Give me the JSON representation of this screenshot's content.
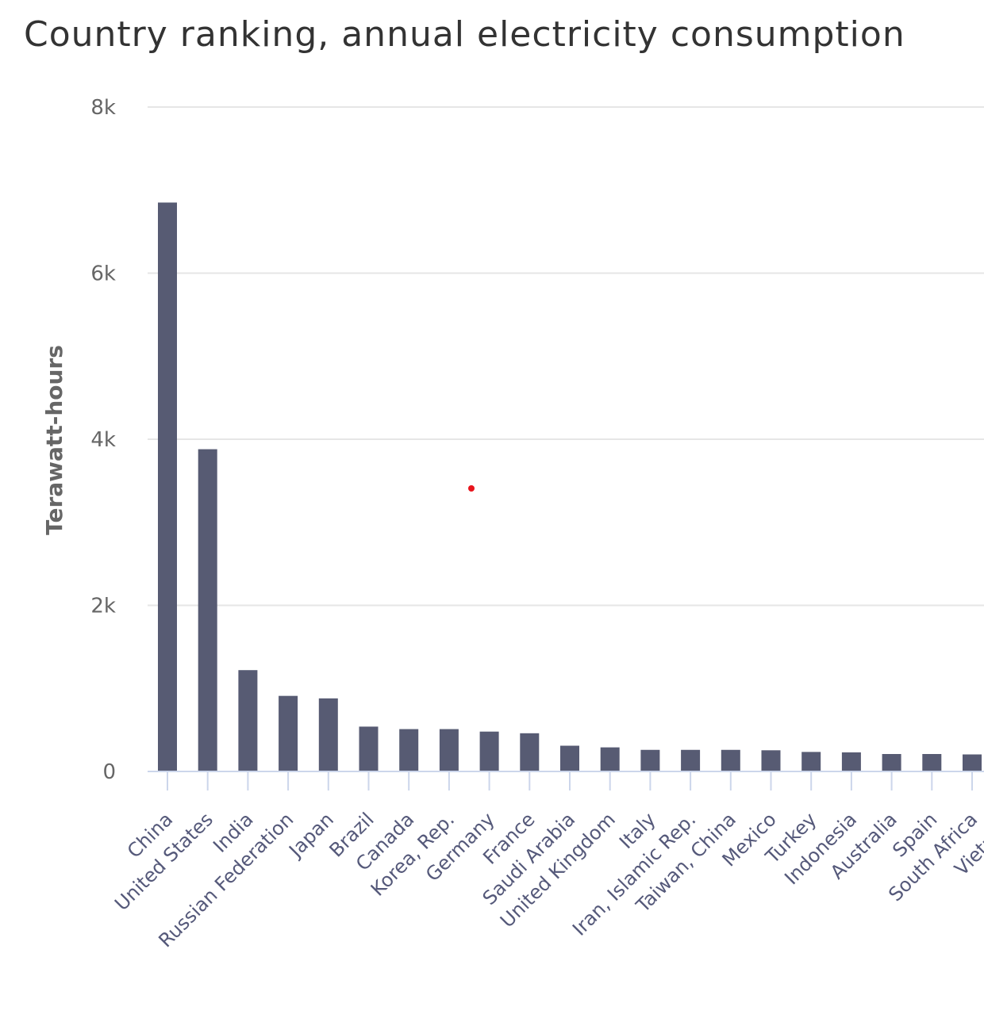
{
  "chart_data": {
    "type": "bar",
    "title": "Country ranking, annual electricity consumption",
    "xlabel": "",
    "ylabel": "Terawatt-hours",
    "ylim": [
      0,
      8000
    ],
    "yticks": [
      0,
      2000,
      4000,
      6000,
      8000
    ],
    "ytick_labels": [
      "0",
      "2k",
      "4k",
      "6k",
      "8k"
    ],
    "grid": true,
    "legend": "none",
    "bar_color": "#575b73",
    "categories": [
      "China",
      "United States",
      "India",
      "Russian Federation",
      "Japan",
      "Brazil",
      "Canada",
      "Korea, Rep.",
      "Germany",
      "France",
      "Saudi Arabia",
      "United Kingdom",
      "Italy",
      "Iran, Islamic Rep.",
      "Taiwan, China",
      "Mexico",
      "Turkey",
      "Indonesia",
      "Australia",
      "Spain",
      "South Africa",
      "Vietnam"
    ],
    "values": [
      6850,
      3880,
      1220,
      910,
      880,
      540,
      510,
      510,
      480,
      460,
      310,
      290,
      260,
      260,
      260,
      255,
      235,
      230,
      210,
      210,
      205,
      185
    ]
  }
}
